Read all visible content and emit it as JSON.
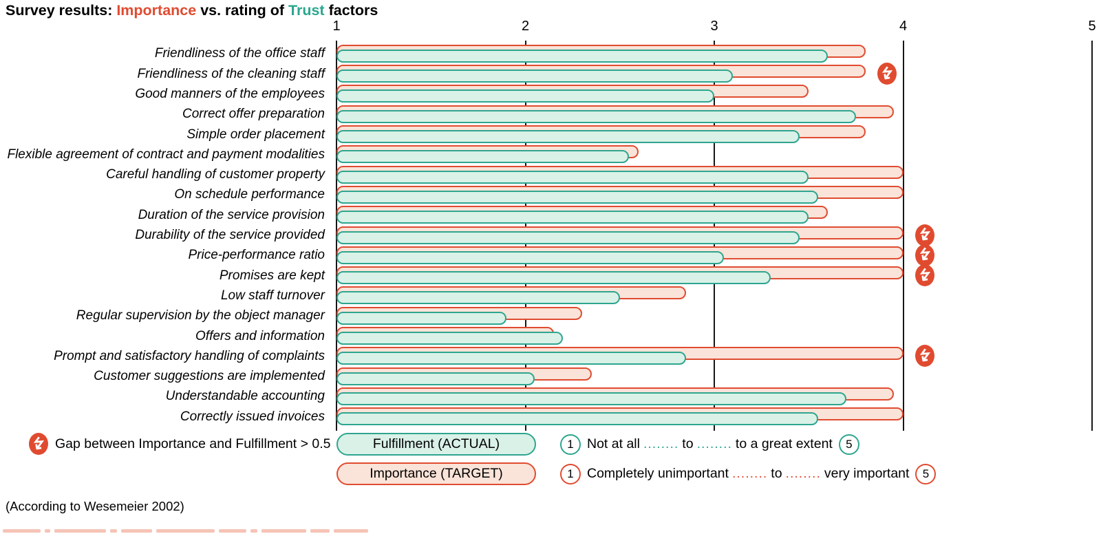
{
  "title": {
    "prefix": "Survey results: ",
    "importance_word": "Importance",
    "middle": " vs. rating of ",
    "trust_word": "Trust",
    "suffix": " factors"
  },
  "colors": {
    "importance_accent": "#e04b30",
    "importance_fill": "#fae3d8",
    "fulfillment_accent": "#2ea58f",
    "fulfillment_fill": "#d9f1e7",
    "axis_line": "#161616"
  },
  "chart_data": {
    "type": "bar",
    "orientation": "horizontal",
    "title": "Survey results: Importance vs. rating of Trust factors",
    "xlim": [
      1,
      5
    ],
    "x_ticks": [
      "1",
      "2",
      "3",
      "4",
      "5"
    ],
    "grid": "vertical lines at each integer tick, drawn behind bars",
    "legend_position": "bottom",
    "series_names": [
      "Importance (TARGET)",
      "Fulfillment (ACTUAL)"
    ],
    "gap_icon_meaning": "Gap between Importance and Fulfillment > 0.5",
    "rows": [
      {
        "label": "Friendliness of the office staff",
        "importance": 3.8,
        "fulfillment": 3.6,
        "gap_icon": false
      },
      {
        "label": "Friendliness of the cleaning staff",
        "importance": 3.8,
        "fulfillment": 3.1,
        "gap_icon": true
      },
      {
        "label": "Good manners of the employees",
        "importance": 3.5,
        "fulfillment": 3.0,
        "gap_icon": false
      },
      {
        "label": "Correct offer preparation",
        "importance": 3.95,
        "fulfillment": 3.75,
        "gap_icon": false
      },
      {
        "label": "Simple order placement",
        "importance": 3.8,
        "fulfillment": 3.45,
        "gap_icon": false
      },
      {
        "label": "Flexible agreement of contract and payment modalities",
        "importance": 2.6,
        "fulfillment": 2.55,
        "gap_icon": false
      },
      {
        "label": "Careful handling of customer property",
        "importance": 4.0,
        "fulfillment": 3.5,
        "gap_icon": false
      },
      {
        "label": "On schedule performance",
        "importance": 4.0,
        "fulfillment": 3.55,
        "gap_icon": false
      },
      {
        "label": "Duration of the service provision",
        "importance": 3.6,
        "fulfillment": 3.5,
        "gap_icon": false
      },
      {
        "label": "Durability of the service provided",
        "importance": 4.0,
        "fulfillment": 3.45,
        "gap_icon": true
      },
      {
        "label": "Price-performance ratio",
        "importance": 4.0,
        "fulfillment": 3.05,
        "gap_icon": true
      },
      {
        "label": "Promises are kept",
        "importance": 4.0,
        "fulfillment": 3.3,
        "gap_icon": true
      },
      {
        "label": "Low staff turnover",
        "importance": 2.85,
        "fulfillment": 2.5,
        "gap_icon": false
      },
      {
        "label": "Regular supervision by the object manager",
        "importance": 2.3,
        "fulfillment": 1.9,
        "gap_icon": false
      },
      {
        "label": "Offers and information",
        "importance": 2.15,
        "fulfillment": 2.2,
        "gap_icon": false
      },
      {
        "label": "Prompt and satisfactory handling of complaints",
        "importance": 4.0,
        "fulfillment": 2.85,
        "gap_icon": true
      },
      {
        "label": "Customer suggestions are implemented",
        "importance": 2.35,
        "fulfillment": 2.05,
        "gap_icon": false
      },
      {
        "label": "Understandable accounting",
        "importance": 3.95,
        "fulfillment": 3.7,
        "gap_icon": false
      },
      {
        "label": "Correctly issued invoices",
        "importance": 4.0,
        "fulfillment": 3.55,
        "gap_icon": false
      }
    ]
  },
  "legend": {
    "gap_note": "Gap between Importance and Fulfillment > 0.5",
    "fulfillment_label": "Fulfillment (ACTUAL)",
    "importance_label": "Importance (TARGET)",
    "fulfillment_scale": {
      "min": "1",
      "part1": "Not at all",
      "dots": "........",
      "to": "to",
      "part2": "to a great extent",
      "max": "5"
    },
    "importance_scale": {
      "min": "1",
      "part1": "Completely unimportant",
      "dots": "........",
      "to": "to",
      "part2": "very important",
      "max": "5"
    }
  },
  "footer": {
    "source": "(According to Wesemeier 2002)"
  }
}
